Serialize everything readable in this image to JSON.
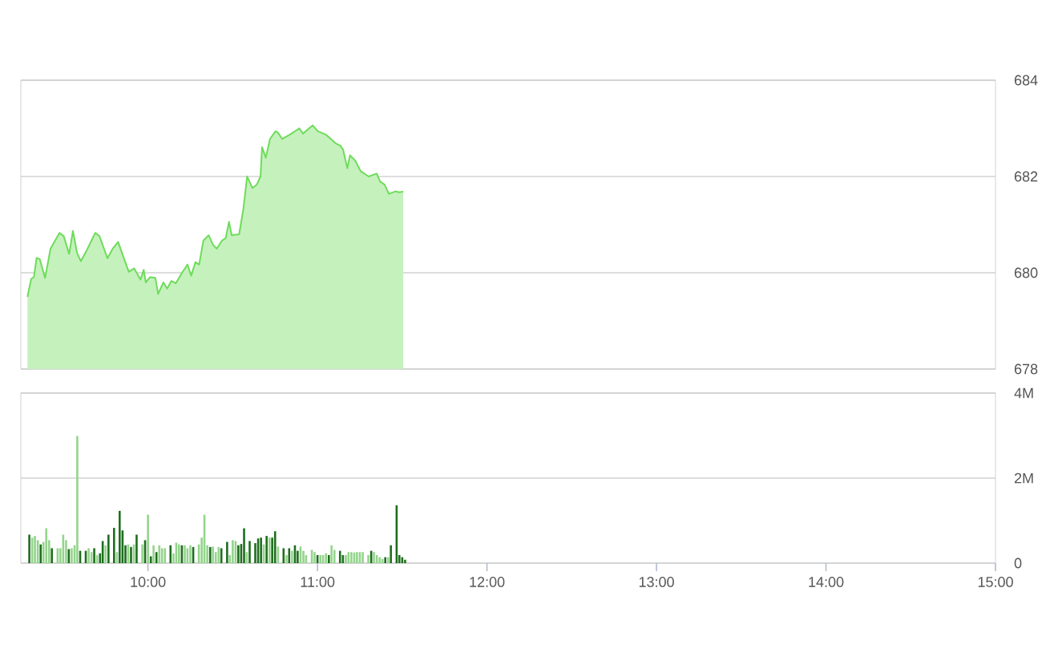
{
  "chart_data": [
    {
      "type": "area",
      "color": "#6edc5a",
      "xlim": [
        9.25,
        15
      ],
      "ylim": [
        678,
        684
      ],
      "yticks": [
        678,
        680,
        682,
        684
      ],
      "grid": "y",
      "tick_labels": "y",
      "x": [
        9.289,
        9.311,
        9.327,
        9.343,
        9.362,
        9.393,
        9.425,
        9.478,
        9.503,
        9.535,
        9.557,
        9.582,
        9.604,
        9.635,
        9.689,
        9.714,
        9.761,
        9.792,
        9.824,
        9.849,
        9.887,
        9.918,
        9.956,
        9.975,
        9.987,
        10.013,
        10.044,
        10.06,
        10.091,
        10.113,
        10.138,
        10.164,
        10.201,
        10.233,
        10.255,
        10.28,
        10.302,
        10.327,
        10.358,
        10.384,
        10.406,
        10.437,
        10.459,
        10.478,
        10.494,
        10.538,
        10.563,
        10.585,
        10.616,
        10.642,
        10.664,
        10.673,
        10.695,
        10.72,
        10.752,
        10.767,
        10.792,
        10.846,
        10.893,
        10.915,
        10.95,
        10.972,
        11.003,
        11.05,
        11.107,
        11.135,
        11.151,
        11.176,
        11.192,
        11.223,
        11.255,
        11.302,
        11.349,
        11.371,
        11.396,
        11.421,
        11.459,
        11.484,
        11.506
      ],
      "values": [
        679.5,
        679.87,
        679.91,
        680.31,
        680.28,
        679.89,
        680.5,
        680.83,
        680.76,
        680.39,
        680.87,
        680.41,
        680.24,
        680.44,
        680.83,
        680.76,
        680.3,
        680.5,
        680.64,
        680.39,
        680.02,
        680.09,
        679.86,
        680.06,
        679.8,
        679.91,
        679.89,
        679.56,
        679.8,
        679.67,
        679.83,
        679.78,
        680.0,
        680.17,
        679.94,
        680.22,
        680.17,
        680.67,
        680.78,
        680.58,
        680.5,
        680.67,
        680.72,
        681.06,
        680.78,
        680.8,
        681.33,
        682.0,
        681.76,
        681.83,
        682.0,
        682.61,
        682.39,
        682.78,
        682.94,
        682.91,
        682.78,
        682.89,
        683.0,
        682.89,
        683.0,
        683.06,
        682.94,
        682.87,
        682.69,
        682.64,
        682.56,
        682.17,
        682.44,
        682.33,
        682.11,
        682.0,
        682.06,
        681.89,
        681.83,
        681.64,
        681.69,
        681.67,
        681.69
      ]
    },
    {
      "type": "bar",
      "xlim": [
        9.25,
        15
      ],
      "xticks": [
        {
          "value": 10,
          "label": "10:00"
        },
        {
          "value": 11,
          "label": "11:00"
        },
        {
          "value": 12,
          "label": "12:00"
        },
        {
          "value": 13,
          "label": "13:00"
        },
        {
          "value": 14,
          "label": "14:00"
        },
        {
          "value": 15,
          "label": "15:00"
        }
      ],
      "ylim": [
        0,
        4
      ],
      "yticks": [
        0,
        {
          "value": 2,
          "label": "2M"
        },
        {
          "value": 4,
          "label": "4M"
        }
      ],
      "grid": "y",
      "series": [
        {
          "color": "#1e6e1e",
          "x": [
            9.3,
            9.367,
            9.433,
            9.533,
            9.6,
            9.633,
            9.683,
            9.717,
            9.733,
            9.767,
            9.8,
            9.833,
            9.85,
            9.867,
            9.9,
            9.933,
            9.983,
            10.017,
            10.05,
            10.133,
            10.2,
            10.267,
            10.367,
            10.433,
            10.467,
            10.533,
            10.55,
            10.567,
            10.6,
            10.633,
            10.65,
            10.667,
            10.7,
            10.733,
            10.75,
            10.8,
            10.833,
            10.867,
            10.883,
            11.0,
            11.067,
            11.133,
            11.15,
            11.317,
            11.4,
            11.433,
            11.467,
            11.483,
            11.5,
            11.517
          ],
          "values": [
            0.67,
            0.44,
            0.35,
            0.33,
            0.29,
            0.29,
            0.35,
            0.23,
            0.52,
            0.67,
            0.83,
            1.23,
            0.77,
            0.42,
            0.38,
            0.67,
            0.54,
            0.16,
            0.26,
            0.42,
            0.42,
            0.38,
            0.38,
            0.35,
            0.5,
            0.42,
            0.45,
            0.82,
            0.52,
            0.47,
            0.58,
            0.6,
            0.64,
            0.6,
            0.75,
            0.35,
            0.35,
            0.42,
            0.29,
            0.19,
            0.19,
            0.29,
            0.19,
            0.29,
            0.14,
            0.42,
            1.36,
            0.19,
            0.14,
            0.08
          ]
        },
        {
          "color": "#94d48c",
          "x": [
            9.317,
            9.333,
            9.35,
            9.383,
            9.4,
            9.417,
            9.467,
            9.483,
            9.5,
            9.517,
            9.55,
            9.567,
            9.583,
            9.65,
            9.667,
            9.7,
            9.75,
            9.817,
            9.883,
            9.917,
            9.967,
            10.0,
            10.033,
            10.067,
            10.083,
            10.1,
            10.15,
            10.167,
            10.183,
            10.217,
            10.233,
            10.25,
            10.3,
            10.317,
            10.333,
            10.35,
            10.383,
            10.4,
            10.417,
            10.483,
            10.5,
            10.517,
            10.583,
            10.683,
            10.717,
            10.767,
            10.817,
            10.85,
            10.9,
            10.917,
            10.933,
            10.967,
            10.983,
            11.017,
            11.033,
            11.05,
            11.083,
            11.1,
            11.167,
            11.183,
            11.2,
            11.217,
            11.233,
            11.25,
            11.267,
            11.3,
            11.333,
            11.35,
            11.367,
            11.383,
            11.417
          ],
          "values": [
            0.6,
            0.64,
            0.54,
            0.5,
            0.82,
            0.54,
            0.35,
            0.35,
            0.67,
            0.54,
            0.35,
            0.42,
            2.99,
            0.35,
            0.26,
            0.19,
            0.42,
            0.26,
            0.44,
            0.44,
            0.44,
            1.14,
            0.42,
            0.42,
            0.35,
            0.35,
            0.23,
            0.48,
            0.44,
            0.42,
            0.35,
            0.42,
            0.44,
            0.6,
            1.14,
            0.42,
            0.39,
            0.26,
            0.38,
            0.19,
            0.54,
            0.52,
            0.26,
            0.44,
            0.6,
            0.39,
            0.19,
            0.29,
            0.39,
            0.29,
            0.19,
            0.31,
            0.26,
            0.19,
            0.19,
            0.23,
            0.42,
            0.31,
            0.19,
            0.26,
            0.26,
            0.25,
            0.26,
            0.26,
            0.26,
            0.19,
            0.26,
            0.19,
            0.14,
            0.1,
            0.14
          ]
        }
      ]
    }
  ]
}
